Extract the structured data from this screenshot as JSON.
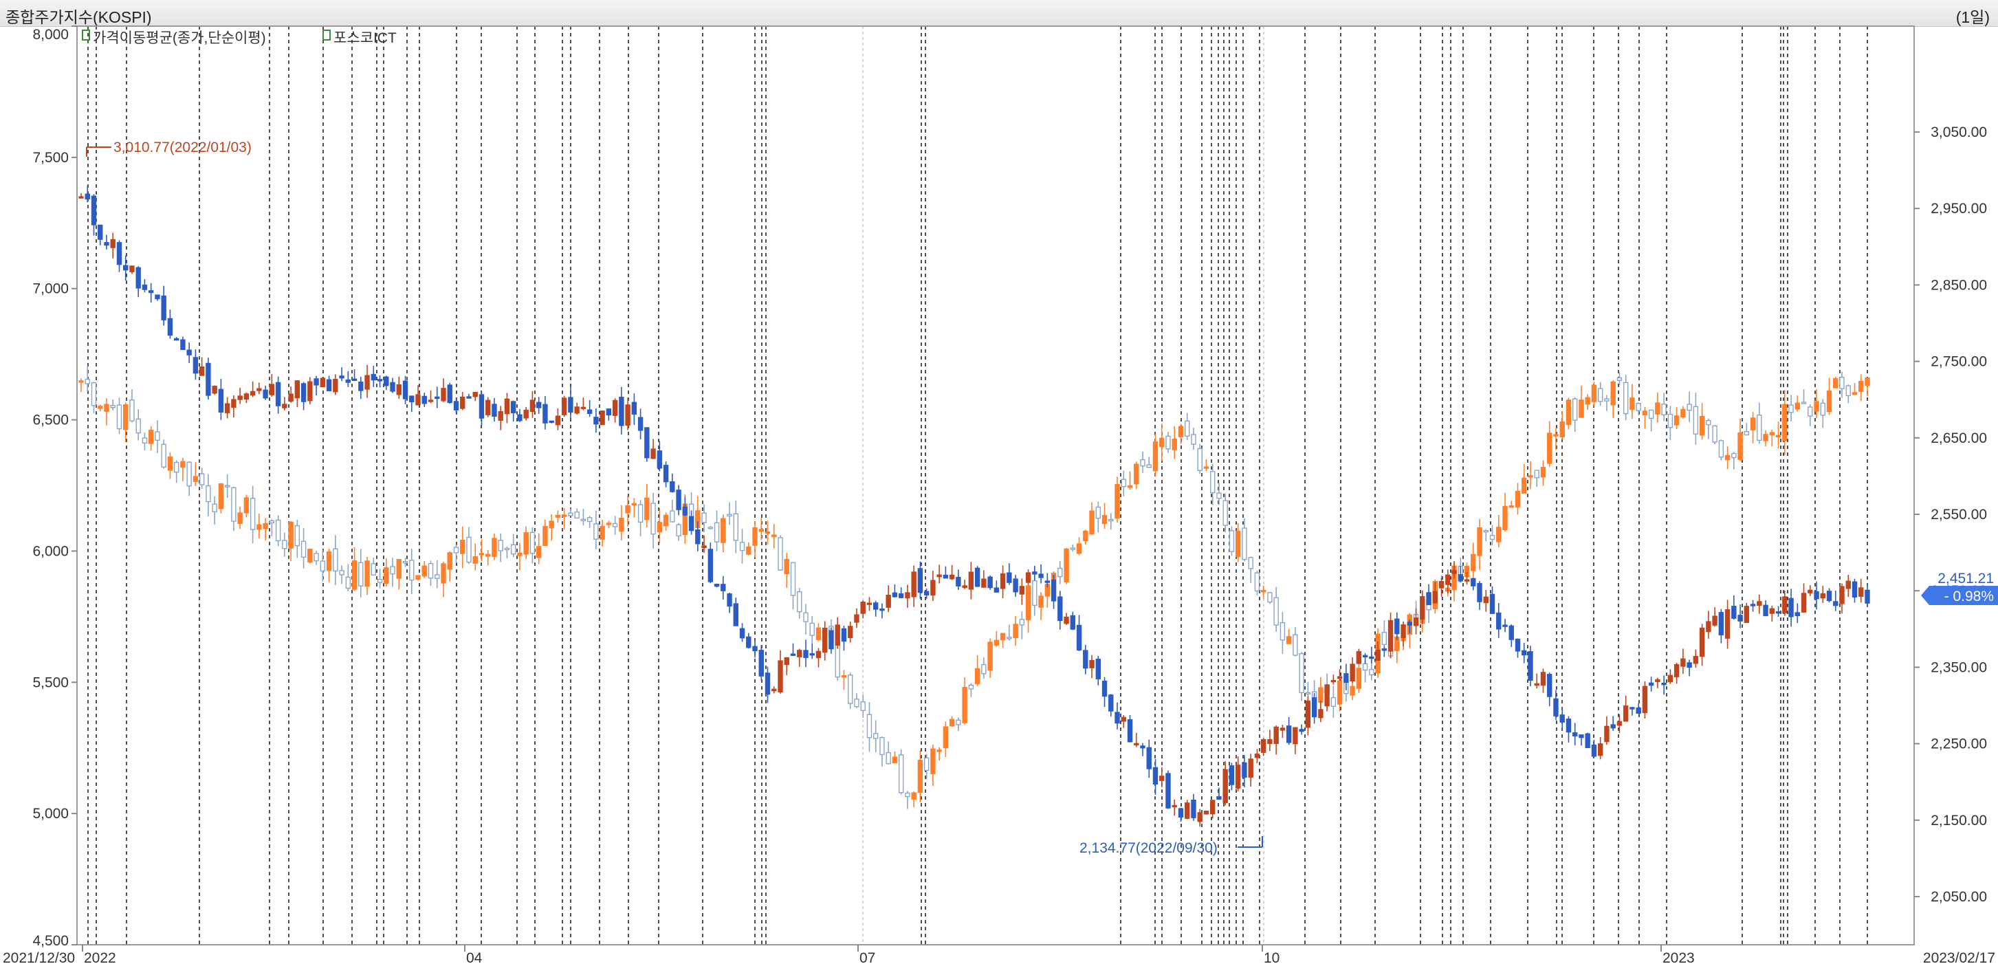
{
  "window": {
    "title": "종합주가지수(KOSPI)",
    "period_label": "(1일)"
  },
  "legend": {
    "items": [
      {
        "label": "가격이동평균(종가,단순이평)",
        "color": "#2f6fd0"
      },
      {
        "label": "포스코ICT",
        "color": "#d2572a"
      }
    ]
  },
  "colors": {
    "kospi_up": "#c0451d",
    "kospi_down": "#2b5cc4",
    "stock_up": "#ff7f2a",
    "stock_down": "#8aa5c8",
    "current_badge": "#3f77e6"
  },
  "current_value": {
    "price": "2,451.21",
    "change": "- 0.98%"
  },
  "annotations": {
    "high": "3,010.77(2022/01/03)",
    "low": "2,134.77(2022/09/30)"
  },
  "chart_data": [
    {
      "type": "candlestick",
      "name": "포스코ICT",
      "axis": "left",
      "ylim": [
        4500,
        8000
      ],
      "y_ticks": [
        "8,000",
        "7,500",
        "7,000",
        "6,500",
        "6,000",
        "5,500",
        "5,000",
        "4,500"
      ],
      "x_labels": [
        "2021/12/30",
        "2022",
        "04",
        "07",
        "10",
        "2023",
        "2023/02/17"
      ],
      "x": [
        "2022-01",
        "2022-02",
        "2022-03",
        "2022-04",
        "2022-05",
        "2022-06",
        "2022-07",
        "2022-08",
        "2022-09",
        "2022-10",
        "2022-11",
        "2022-12",
        "2023-01",
        "2023-02"
      ],
      "close": [
        6650,
        6200,
        5900,
        6000,
        6150,
        6050,
        5100,
        5900,
        6450,
        5400,
        5900,
        6650,
        6400,
        6650
      ]
    },
    {
      "type": "candlestick",
      "name": "종합주가지수(KOSPI)",
      "axis": "right",
      "ylim": [
        2000,
        3100
      ],
      "y_ticks": [
        "3,050.00",
        "2,950.00",
        "2,850.00",
        "2,750.00",
        "2,650.00",
        "2,550.00",
        "2,450.00",
        "2,350.00",
        "2,250.00",
        "2,150.00",
        "2,050.00"
      ],
      "x": [
        "2022-01",
        "2022-02",
        "2022-03",
        "2022-04",
        "2022-05",
        "2022-06",
        "2022-07",
        "2022-08",
        "2022-09",
        "2022-10",
        "2022-11",
        "2022-12",
        "2023-01",
        "2023-02"
      ],
      "close": [
        2960,
        2700,
        2720,
        2690,
        2680,
        2330,
        2460,
        2460,
        2150,
        2300,
        2480,
        2240,
        2420,
        2451.21
      ]
    }
  ]
}
